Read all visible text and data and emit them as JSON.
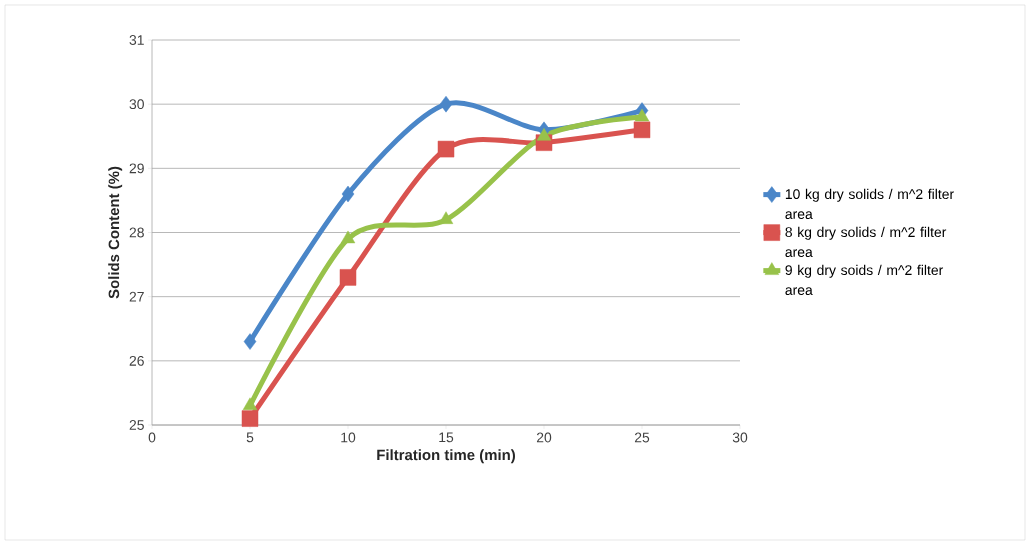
{
  "chart_data": {
    "type": "line",
    "xlabel": "Filtration time (min)",
    "ylabel": "Solids Content (%)",
    "x": [
      5,
      10,
      15,
      20,
      25
    ],
    "series": [
      {
        "name": "10 kg dry solids / m^2 filter area",
        "color": "#4a86c8",
        "marker": "diamond",
        "values": [
          26.3,
          28.6,
          30.0,
          29.6,
          29.9
        ]
      },
      {
        "name": "8 kg dry solids / m^2 filter area",
        "color": "#d9534f",
        "marker": "square",
        "values": [
          25.1,
          27.3,
          29.3,
          29.4,
          29.6
        ]
      },
      {
        "name": "9 kg dry soids / m^2 filter area",
        "color": "#98c24a",
        "marker": "triangle",
        "values": [
          25.3,
          27.9,
          28.2,
          29.5,
          29.8
        ]
      }
    ],
    "xlim": [
      0,
      30
    ],
    "xticks": [
      0,
      5,
      10,
      15,
      20,
      25,
      30
    ],
    "ylim": [
      25,
      31
    ],
    "yticks": [
      25,
      26,
      27,
      28,
      29,
      30,
      31
    ],
    "grid": "y",
    "legend": "right"
  }
}
